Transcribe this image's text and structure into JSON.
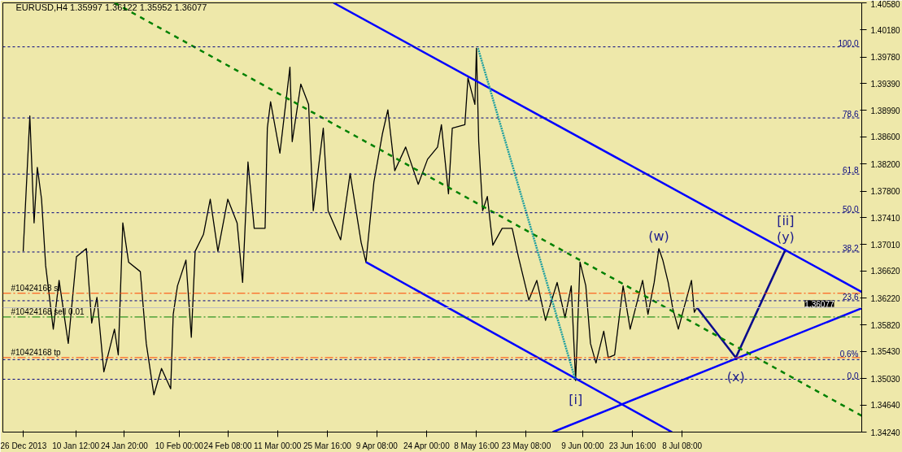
{
  "chart_data": {
    "type": "line",
    "title": "EURUSD,H4  1.35997 1.36122 1.35952 1.36077",
    "xlim": [
      "2013-12-20T00:00",
      "2014-08-30T07:00"
    ],
    "ylim": [
      1.3424,
      1.4058
    ],
    "xticks": [
      {
        "value": "2013-12-26T00:00",
        "label": "26 Dec 2013"
      },
      {
        "value": "2014-01-10T12:00",
        "label": "10 Jan 12:00"
      },
      {
        "value": "2014-01-24T20:00",
        "label": "24 Jan 20:00"
      },
      {
        "value": "2014-02-10T00:00",
        "label": "10 Feb 00:00"
      },
      {
        "value": "2014-02-24T08:00",
        "label": "24 Feb 08:00"
      },
      {
        "value": "2014-03-11T00:00",
        "label": "11 Mar 00:00"
      },
      {
        "value": "2014-03-25T16:00",
        "label": "25 Mar 16:00"
      },
      {
        "value": "2014-04-09T08:00",
        "label": "9 Apr 08:00"
      },
      {
        "value": "2014-04-24T00:00",
        "label": "24 Apr 00:00"
      },
      {
        "value": "2014-05-08T16:00",
        "label": "8 May 16:00"
      },
      {
        "value": "2014-05-23T08:00",
        "label": "23 May 08:00"
      },
      {
        "value": "2014-06-09T00:00",
        "label": "9 Jun 00:00"
      },
      {
        "value": "2014-06-23T16:00",
        "label": "23 Jun 16:00"
      },
      {
        "value": "2014-07-08T08:00",
        "label": "8 Jul 08:00"
      }
    ],
    "yticks": [
      {
        "value": 1.4058,
        "label": "1.40580"
      },
      {
        "value": 1.4018,
        "label": "1.40180"
      },
      {
        "value": 1.3978,
        "label": "1.39780"
      },
      {
        "value": 1.3939,
        "label": "1.39390"
      },
      {
        "value": 1.3899,
        "label": "1.38990"
      },
      {
        "value": 1.386,
        "label": "1.38600"
      },
      {
        "value": 1.382,
        "label": "1.38200"
      },
      {
        "value": 1.378,
        "label": "1.37800"
      },
      {
        "value": 1.3741,
        "label": "1.37410"
      },
      {
        "value": 1.3701,
        "label": "1.37010"
      },
      {
        "value": 1.3662,
        "label": "1.36620"
      },
      {
        "value": 1.3622,
        "label": "1.36220"
      },
      {
        "value": 1.3582,
        "label": "1.35820"
      },
      {
        "value": 1.3543,
        "label": "1.35430"
      },
      {
        "value": 1.3503,
        "label": "1.35030"
      },
      {
        "value": 1.3464,
        "label": "1.34640"
      },
      {
        "value": 1.3424,
        "label": "1.34240"
      }
    ],
    "series": [
      {
        "color": "#000000",
        "line_style": "solid",
        "x": [
          "2013-12-26T00:00",
          "2013-12-27T23:00",
          "2013-12-29T05:00",
          "2013-12-30T04:00",
          "2013-12-31T10:00",
          "2014-01-01T15:00",
          "2014-01-03T21:00",
          "2014-01-05T14:00",
          "2014-01-08T07:00",
          "2014-01-10T17:00",
          "2014-01-13T15:00",
          "2014-01-15T05:00",
          "2014-01-16T18:00",
          "2014-01-18T19:00",
          "2014-01-21T22:00",
          "2014-01-23T01:00",
          "2014-01-24T09:00",
          "2014-01-26T02:00",
          "2014-01-29T13:00",
          "2014-01-31T07:00",
          "2014-02-02T13:00",
          "2014-02-04T19:00",
          "2014-02-07T12:00",
          "2014-02-08T06:00",
          "2014-02-09T12:00",
          "2014-02-12T00:00",
          "2014-02-13T14:00",
          "2014-02-14T17:00",
          "2014-02-17T04:00",
          "2014-02-19T04:00",
          "2014-02-21T10:00",
          "2014-02-24T08:00",
          "2014-02-27T02:00",
          "2014-02-28T17:00",
          "2014-03-02T07:00",
          "2014-03-04T03:00",
          "2014-03-07T08:00",
          "2014-03-08T00:00",
          "2014-03-08T23:00",
          "2014-03-11T17:00",
          "2014-03-14T16:00",
          "2014-03-15T08:00",
          "2014-03-17T21:00",
          "2014-03-20T04:00",
          "2014-03-21T13:00",
          "2014-03-24T12:00",
          "2014-03-25T22:00",
          "2014-03-29T15:00",
          "2014-04-01T10:00",
          "2014-04-04T16:00",
          "2014-04-06T02:00",
          "2014-04-08T10:00",
          "2014-04-10T23:00",
          "2014-04-12T13:00",
          "2014-04-14T14:00",
          "2014-04-17T19:00",
          "2014-04-21T12:00",
          "2014-04-24T06:00",
          "2014-04-27T05:00",
          "2014-04-28T08:00",
          "2014-04-30T10:00",
          "2014-05-01T13:00",
          "2014-05-05T06:00",
          "2014-05-06T04:00",
          "2014-05-08T05:00",
          "2014-05-08T16:00",
          "2014-05-09T08:00",
          "2014-05-10T12:00",
          "2014-05-11T21:00",
          "2014-05-13T12:00",
          "2014-05-16T06:00",
          "2014-05-19T05:00",
          "2014-05-21T01:00",
          "2014-05-24T03:00",
          "2014-05-26T11:00",
          "2014-05-29T01:00",
          "2014-06-01T11:00",
          "2014-06-03T19:00",
          "2014-06-05T15:00",
          "2014-06-06T22:00",
          "2014-06-08T05:00",
          "2014-06-09T22:00",
          "2014-06-11T07:00",
          "2014-06-12T22:00",
          "2014-06-15T05:00",
          "2014-06-16T13:00",
          "2014-06-18T10:00",
          "2014-06-20T22:00",
          "2014-06-23T00:00",
          "2014-06-26T16:00",
          "2014-06-28T06:00",
          "2014-06-30T02:00",
          "2014-07-01T11:00",
          "2014-07-02T15:00",
          "2014-07-04T05:00",
          "2014-07-05T14:00",
          "2014-07-07T05:00",
          "2014-07-08T19:00",
          "2014-07-11T02:00",
          "2014-07-11T22:00",
          "2014-07-12T17:00"
        ],
        "values": [
          1.3691,
          1.3891,
          1.3733,
          1.3815,
          1.3768,
          1.367,
          1.3576,
          1.3648,
          1.3555,
          1.3683,
          1.3695,
          1.3585,
          1.3623,
          1.3513,
          1.3576,
          1.3538,
          1.3733,
          1.3675,
          1.3661,
          1.3555,
          1.3479,
          1.3518,
          1.3488,
          1.3598,
          1.364,
          1.3678,
          1.3564,
          1.3691,
          1.3716,
          1.3768,
          1.3691,
          1.3768,
          1.3733,
          1.3645,
          1.3823,
          1.3725,
          1.3725,
          1.3873,
          1.3912,
          1.3836,
          1.3963,
          1.3853,
          1.3938,
          1.3908,
          1.3751,
          1.3873,
          1.3751,
          1.3708,
          1.3806,
          1.3704,
          1.3675,
          1.3793,
          1.3865,
          1.39,
          1.381,
          1.3845,
          1.379,
          1.3827,
          1.3845,
          1.3878,
          1.3776,
          1.3873,
          1.3878,
          1.3947,
          1.3908,
          1.3991,
          1.3853,
          1.3751,
          1.3772,
          1.37,
          1.3725,
          1.3725,
          1.3683,
          1.3619,
          1.3648,
          1.3589,
          1.3645,
          1.3593,
          1.364,
          1.35,
          1.3675,
          1.364,
          1.3555,
          1.3526,
          1.3573,
          1.3534,
          1.3538,
          1.364,
          1.3576,
          1.3648,
          1.3598,
          1.3645,
          1.3695,
          1.3678,
          1.3645,
          1.3606,
          1.3576,
          1.3606,
          1.3648,
          1.3601,
          1.3608
        ]
      },
      {
        "color": "#0a0a8c",
        "line_style": "solid",
        "x": [
          "2014-07-12T17:00",
          "2014-07-24T04:00",
          "2014-08-07T20:00"
        ],
        "values": [
          1.3608,
          1.3534,
          1.3694
        ]
      },
      {
        "color": "#0000ff",
        "line_style": "solid",
        "x": [
          "2014-03-27T13:00",
          "2014-08-30T07:00"
        ],
        "values": [
          1.4058,
          1.3631
        ]
      },
      {
        "color": "#0000ff",
        "line_style": "solid",
        "x": [
          "2014-04-06T02:00",
          "2014-07-05T08:00"
        ],
        "values": [
          1.3675,
          1.3424
        ]
      },
      {
        "color": "#0000ff",
        "line_style": "solid",
        "x": [
          "2014-05-31T04:00",
          "2014-08-30T07:00"
        ],
        "values": [
          1.3424,
          1.3607
        ]
      },
      {
        "color": "#008000",
        "line_style": "dashed",
        "x": [
          "2014-01-21T22:00",
          "2014-08-30T07:00"
        ],
        "values": [
          1.4058,
          1.3448
        ]
      },
      {
        "color": "#20a0a0",
        "line_style": "dotted",
        "x": [
          "2014-05-09T03:00",
          "2014-06-06T22:00"
        ],
        "values": [
          1.3991,
          1.35
        ]
      }
    ],
    "ref_lines": [
      {
        "axis": "y",
        "value": 1.3993,
        "color": "#000080",
        "line_style": "dotted"
      },
      {
        "axis": "y",
        "value": 1.3888,
        "color": "#000080",
        "line_style": "dotted"
      },
      {
        "axis": "y",
        "value": 1.3805,
        "color": "#000080",
        "line_style": "dotted"
      },
      {
        "axis": "y",
        "value": 1.3748,
        "color": "#000080",
        "line_style": "dotted"
      },
      {
        "axis": "y",
        "value": 1.369,
        "color": "#000080",
        "line_style": "dotted"
      },
      {
        "axis": "y",
        "value": 1.3618,
        "color": "#000080",
        "line_style": "dotted"
      },
      {
        "axis": "y",
        "value": 1.3531,
        "color": "#000080",
        "line_style": "dotted"
      },
      {
        "axis": "y",
        "value": 1.3502,
        "color": "#000080",
        "line_style": "dotted"
      },
      {
        "axis": "y",
        "value": 1.3629,
        "label": "#10424168 sl",
        "color": "#ff4500",
        "line_style": "dashed"
      },
      {
        "axis": "y",
        "value": 1.3594,
        "label": "#10424168 sell 0.01",
        "color": "#008000",
        "line_style": "dashed"
      },
      {
        "axis": "y",
        "value": 1.3534,
        "label": "#10424168 tp",
        "color": "#ff4500",
        "line_style": "dashed"
      },
      {
        "axis": "y",
        "value": 1.36077,
        "label": "1.36077",
        "color": "#c0c0c0",
        "line_style": "solid"
      }
    ],
    "annotations": [
      {
        "text": "[i]",
        "x": "2014-06-06T22:00",
        "y": 1.35
      },
      {
        "text": "(w)",
        "x": "2014-07-01T11:00",
        "y": 1.3695
      },
      {
        "text": "(x)",
        "x": "2014-07-24T04:00",
        "y": 1.3534
      },
      {
        "text": "(y)",
        "x": "2014-08-07T20:00",
        "y": 1.3694
      },
      {
        "text": "[ii]",
        "x": "2014-08-07T20:00",
        "y": 1.3694
      },
      {
        "text": "100.0",
        "x": "2014-08-30T07:00",
        "y": 1.3993
      },
      {
        "text": "78.6",
        "x": "2014-08-30T07:00",
        "y": 1.3888
      },
      {
        "text": "61.8",
        "x": "2014-08-30T07:00",
        "y": 1.3805
      },
      {
        "text": "50.0",
        "x": "2014-08-30T07:00",
        "y": 1.3748
      },
      {
        "text": "38.2",
        "x": "2014-08-30T07:00",
        "y": 1.369
      },
      {
        "text": "23.6",
        "x": "2014-08-30T07:00",
        "y": 1.3618
      },
      {
        "text": "0.6%",
        "x": "2014-08-30T07:00",
        "y": 1.3531
      },
      {
        "text": "0.0",
        "x": "2014-08-30T07:00",
        "y": 1.3502
      }
    ]
  }
}
